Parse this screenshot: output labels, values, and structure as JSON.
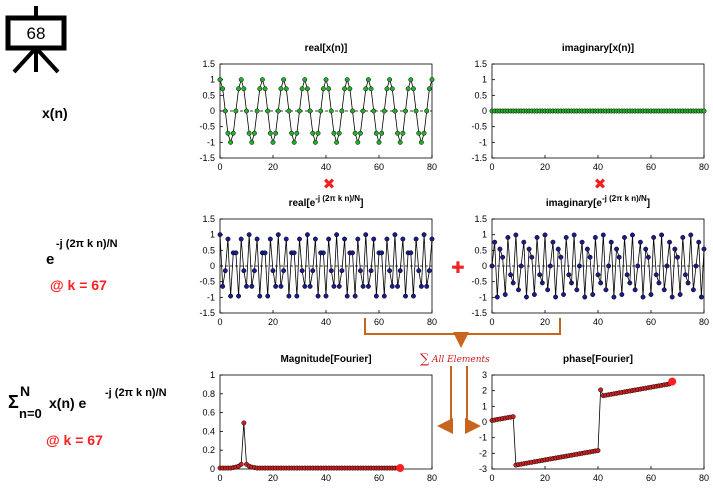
{
  "slide": {
    "number": "68"
  },
  "left_labels": {
    "signal": "x(n)",
    "kernel_base": "e",
    "kernel_exp": "-j (2π k n)/N",
    "k_value_1": "@ k = 67",
    "sum_sigma": "Σ",
    "sum_top": "N",
    "sum_bottom": "n=0",
    "sum_body": "x(n) e",
    "sum_exp": "-j (2π k n)/N",
    "k_value_2": "@ k = 67"
  },
  "operators": {
    "multiply": "✖",
    "plus": "✚",
    "sum_label": "All Elements",
    "sum_symbol": "∑"
  },
  "colors": {
    "signal_green": "#22b02a",
    "kernel_blue": "#1b1b8a",
    "result_red": "#cc2020",
    "result_end": "#ff2020",
    "arrow_orange": "#c8641e",
    "accent_red": "#ee2222"
  },
  "chart_data": [
    {
      "id": "real-x",
      "type": "line",
      "title": "real[x(n)]",
      "xlim": [
        0,
        80
      ],
      "ylim": [
        -1.5,
        1.5
      ],
      "xticks": [
        "0",
        "20",
        "40",
        "60",
        "80"
      ],
      "yticks": [
        "1.5",
        "1",
        "0.5",
        "0",
        "-0.5",
        "-1",
        "-1.5"
      ],
      "marker_color": "#22b02a",
      "x": [
        0,
        1,
        2,
        3,
        4,
        5,
        6,
        7,
        8,
        9,
        10,
        11,
        12,
        13,
        14,
        15,
        16,
        17,
        18,
        19,
        20,
        21,
        22,
        23,
        24,
        25,
        26,
        27,
        28,
        29,
        30,
        31,
        32,
        33,
        34,
        35,
        36,
        37,
        38,
        39,
        40,
        41,
        42,
        43,
        44,
        45,
        46,
        47,
        48,
        49,
        50,
        51,
        52,
        53,
        54,
        55,
        56,
        57,
        58,
        59,
        60,
        61,
        62,
        63,
        64,
        65,
        66,
        67,
        68,
        69,
        70,
        71,
        72,
        73,
        74,
        75,
        76,
        77,
        78,
        79,
        80
      ],
      "y": [
        1.0,
        0.71,
        0.0,
        -0.71,
        -1.0,
        -0.71,
        0.0,
        0.71,
        1.0,
        0.71,
        0.0,
        -0.71,
        -1.0,
        -0.71,
        0.0,
        0.71,
        1.0,
        0.71,
        0.0,
        -0.71,
        -1.0,
        -0.71,
        0.0,
        0.71,
        1.0,
        0.71,
        0.0,
        -0.71,
        -1.0,
        -0.71,
        0.0,
        0.71,
        1.0,
        0.71,
        0.0,
        -0.71,
        -1.0,
        -0.71,
        0.0,
        0.71,
        1.0,
        0.71,
        0.0,
        -0.71,
        -1.0,
        -0.71,
        0.0,
        0.71,
        1.0,
        0.71,
        0.0,
        -0.71,
        -1.0,
        -0.71,
        0.0,
        0.71,
        1.0,
        0.71,
        0.0,
        -0.71,
        -1.0,
        -0.71,
        0.0,
        0.71,
        1.0,
        0.71,
        0.0,
        -0.71,
        -1.0,
        -0.71,
        0.0,
        0.71,
        1.0,
        0.71,
        0.0,
        -0.71,
        -1.0,
        -0.71,
        0.0,
        0.71,
        1.0
      ],
      "zero_line": true
    },
    {
      "id": "imag-x",
      "type": "line",
      "title": "imaginary[x(n)]",
      "xlim": [
        0,
        80
      ],
      "ylim": [
        -1.5,
        1.5
      ],
      "xticks": [
        "0",
        "20",
        "40",
        "60",
        "80"
      ],
      "yticks": [
        "1.5",
        "1",
        "0.5",
        "0",
        "-0.5",
        "-1",
        "-1.5"
      ],
      "marker_color": "#22b02a",
      "x": [
        0,
        1,
        2,
        3,
        4,
        5,
        6,
        7,
        8,
        9,
        10,
        11,
        12,
        13,
        14,
        15,
        16,
        17,
        18,
        19,
        20,
        21,
        22,
        23,
        24,
        25,
        26,
        27,
        28,
        29,
        30,
        31,
        32,
        33,
        34,
        35,
        36,
        37,
        38,
        39,
        40,
        41,
        42,
        43,
        44,
        45,
        46,
        47,
        48,
        49,
        50,
        51,
        52,
        53,
        54,
        55,
        56,
        57,
        58,
        59,
        60,
        61,
        62,
        63,
        64,
        65,
        66,
        67,
        68,
        69,
        70,
        71,
        72,
        73,
        74,
        75,
        76,
        77,
        78,
        79,
        80
      ],
      "y": [
        0,
        0,
        0,
        0,
        0,
        0,
        0,
        0,
        0,
        0,
        0,
        0,
        0,
        0,
        0,
        0,
        0,
        0,
        0,
        0,
        0,
        0,
        0,
        0,
        0,
        0,
        0,
        0,
        0,
        0,
        0,
        0,
        0,
        0,
        0,
        0,
        0,
        0,
        0,
        0,
        0,
        0,
        0,
        0,
        0,
        0,
        0,
        0,
        0,
        0,
        0,
        0,
        0,
        0,
        0,
        0,
        0,
        0,
        0,
        0,
        0,
        0,
        0,
        0,
        0,
        0,
        0,
        0,
        0,
        0,
        0,
        0,
        0,
        0,
        0,
        0,
        0,
        0,
        0,
        0,
        0
      ],
      "zero_line": true
    },
    {
      "id": "real-kernel",
      "type": "line",
      "title_main": "real[e",
      "title_sup": "-j (2π k n)/N",
      "title_end": "]",
      "xlim": [
        0,
        80
      ],
      "ylim": [
        -1.5,
        1.5
      ],
      "xticks": [
        "0",
        "20",
        "40",
        "60",
        "80"
      ],
      "yticks": [
        "1.5",
        "1",
        "0.5",
        "0",
        "-0.5",
        "-1",
        "-1.5"
      ],
      "marker_color": "#1b1b8a",
      "x": [
        0,
        1,
        2,
        3,
        4,
        5,
        6,
        7,
        8,
        9,
        10,
        11,
        12,
        13,
        14,
        15,
        16,
        17,
        18,
        19,
        20,
        21,
        22,
        23,
        24,
        25,
        26,
        27,
        28,
        29,
        30,
        31,
        32,
        33,
        34,
        35,
        36,
        37,
        38,
        39,
        40,
        41,
        42,
        43,
        44,
        45,
        46,
        47,
        48,
        49,
        50,
        51,
        52,
        53,
        54,
        55,
        56,
        57,
        58,
        59,
        60,
        61,
        62,
        63,
        64,
        65,
        66,
        67,
        68,
        69,
        70,
        71,
        72,
        73,
        74,
        75,
        76,
        77,
        78,
        79,
        80
      ],
      "y": [
        1.0,
        -0.65,
        -0.15,
        0.86,
        -0.96,
        0.42,
        0.42,
        -0.96,
        0.86,
        -0.15,
        -0.65,
        1.0,
        -0.65,
        -0.15,
        0.86,
        -0.96,
        0.42,
        0.42,
        -0.96,
        0.86,
        -0.15,
        -0.65,
        1.0,
        -0.65,
        -0.15,
        0.86,
        -0.96,
        0.42,
        0.42,
        -0.96,
        0.86,
        -0.15,
        -0.65,
        1.0,
        -0.65,
        -0.15,
        0.86,
        -0.96,
        0.42,
        0.42,
        -0.96,
        0.86,
        -0.15,
        -0.65,
        1.0,
        -0.65,
        -0.15,
        0.86,
        -0.96,
        0.42,
        0.42,
        -0.96,
        0.86,
        -0.15,
        -0.65,
        1.0,
        -0.65,
        -0.15,
        0.86,
        -0.96,
        0.42,
        0.42,
        -0.96,
        0.86,
        -0.15,
        -0.65,
        1.0,
        -0.65,
        -0.15,
        0.86,
        -0.96,
        0.42,
        0.42,
        -0.96,
        0.86,
        -0.15,
        -0.65,
        1.0,
        -0.65,
        -0.15,
        0.86
      ],
      "zero_line": true
    },
    {
      "id": "imag-kernel",
      "type": "line",
      "title_main": "imaginary[e",
      "title_sup": "-j (2π k n)/N",
      "title_end": "]",
      "xlim": [
        0,
        80
      ],
      "ylim": [
        -1.5,
        1.5
      ],
      "xticks": [
        "0",
        "20",
        "40",
        "60",
        "80"
      ],
      "yticks": [
        "1.5",
        "1",
        "0.5",
        "0",
        "-0.5",
        "-1",
        "-1.5"
      ],
      "marker_color": "#1b1b8a",
      "x": [
        0,
        1,
        2,
        3,
        4,
        5,
        6,
        7,
        8,
        9,
        10,
        11,
        12,
        13,
        14,
        15,
        16,
        17,
        18,
        19,
        20,
        21,
        22,
        23,
        24,
        25,
        26,
        27,
        28,
        29,
        30,
        31,
        32,
        33,
        34,
        35,
        36,
        37,
        38,
        39,
        40,
        41,
        42,
        43,
        44,
        45,
        46,
        47,
        48,
        49,
        50,
        51,
        52,
        53,
        54,
        55,
        56,
        57,
        58,
        59,
        60,
        61,
        62,
        63,
        64,
        65,
        66,
        67,
        68,
        69,
        70,
        71,
        72,
        73,
        74,
        75,
        76,
        77,
        78,
        79,
        80
      ],
      "y": [
        0.0,
        0.76,
        -0.99,
        0.54,
        0.28,
        -0.91,
        0.91,
        -0.28,
        -0.54,
        0.99,
        -0.76,
        0.0,
        0.76,
        -0.99,
        0.54,
        0.28,
        -0.91,
        0.91,
        -0.28,
        -0.54,
        0.99,
        -0.76,
        0.0,
        0.76,
        -0.99,
        0.54,
        0.28,
        -0.91,
        0.91,
        -0.28,
        -0.54,
        0.99,
        -0.76,
        0.0,
        0.76,
        -0.99,
        0.54,
        0.28,
        -0.91,
        0.91,
        -0.28,
        -0.54,
        0.99,
        -0.76,
        0.0,
        0.76,
        -0.99,
        0.54,
        0.28,
        -0.91,
        0.91,
        -0.28,
        -0.54,
        0.99,
        -0.76,
        0.0,
        0.76,
        -0.99,
        0.54,
        0.28,
        -0.91,
        0.91,
        -0.28,
        -0.54,
        0.99,
        -0.76,
        0.0,
        0.76,
        -0.99,
        0.54,
        0.28,
        -0.91,
        0.91,
        -0.28,
        -0.54,
        0.99,
        -0.76,
        0.0,
        0.76,
        -0.99,
        0.54
      ],
      "zero_line": true
    },
    {
      "id": "magnitude",
      "type": "line",
      "title": "Magnitude[Fourier]",
      "xlim": [
        0,
        80
      ],
      "ylim": [
        0,
        1
      ],
      "xticks": [
        "0",
        "20",
        "40",
        "60",
        "80"
      ],
      "yticks": [
        "1",
        "0.8",
        "0.6",
        "0.4",
        "0.2",
        "0"
      ],
      "marker_color": "#cc2020",
      "x": [
        0,
        1,
        2,
        3,
        4,
        5,
        6,
        7,
        8,
        9,
        10,
        11,
        12,
        13,
        14,
        15,
        16,
        17,
        18,
        19,
        20,
        21,
        22,
        23,
        24,
        25,
        26,
        27,
        28,
        29,
        30,
        31,
        32,
        33,
        34,
        35,
        36,
        37,
        38,
        39,
        40,
        41,
        42,
        43,
        44,
        45,
        46,
        47,
        48,
        49,
        50,
        51,
        52,
        53,
        54,
        55,
        56,
        57,
        58,
        59,
        60,
        61,
        62,
        63,
        64,
        65,
        66,
        67,
        68
      ],
      "y": [
        0.01,
        0.01,
        0.01,
        0.01,
        0.01,
        0.015,
        0.02,
        0.03,
        0.05,
        0.49,
        0.05,
        0.03,
        0.02,
        0.015,
        0.01,
        0.01,
        0.01,
        0.01,
        0.01,
        0.01,
        0.01,
        0.01,
        0.01,
        0.01,
        0.01,
        0.01,
        0.01,
        0.01,
        0.01,
        0.01,
        0.01,
        0.01,
        0.01,
        0.01,
        0.01,
        0.01,
        0.01,
        0.01,
        0.01,
        0.01,
        0.01,
        0.01,
        0.01,
        0.01,
        0.01,
        0.01,
        0.01,
        0.01,
        0.01,
        0.01,
        0.01,
        0.01,
        0.01,
        0.01,
        0.01,
        0.01,
        0.01,
        0.01,
        0.01,
        0.01,
        0.01,
        0.01,
        0.01,
        0.01,
        0.01,
        0.01,
        0.01,
        0.01,
        0.01
      ],
      "highlight_last": true,
      "zero_line": false
    },
    {
      "id": "phase",
      "type": "line",
      "title": "phase[Fourier]",
      "xlim": [
        0,
        80
      ],
      "ylim": [
        -3,
        3
      ],
      "xticks": [
        "0",
        "20",
        "40",
        "60",
        "80"
      ],
      "yticks": [
        "3",
        "2",
        "1",
        "0",
        "-1",
        "-2",
        "-3"
      ],
      "marker_color": "#cc2020",
      "x": [
        0,
        1,
        2,
        3,
        4,
        5,
        6,
        7,
        8,
        9,
        10,
        11,
        12,
        13,
        14,
        15,
        16,
        17,
        18,
        19,
        20,
        21,
        22,
        23,
        24,
        25,
        26,
        27,
        28,
        29,
        30,
        31,
        32,
        33,
        34,
        35,
        36,
        37,
        38,
        39,
        40,
        41,
        42,
        43,
        44,
        45,
        46,
        47,
        48,
        49,
        50,
        51,
        52,
        53,
        54,
        55,
        56,
        57,
        58,
        59,
        60,
        61,
        62,
        63,
        64,
        65,
        66,
        67,
        68
      ],
      "y": [
        0.1,
        0.13,
        0.16,
        0.19,
        0.22,
        0.25,
        0.28,
        0.31,
        0.34,
        -2.75,
        -2.72,
        -2.69,
        -2.66,
        -2.63,
        -2.6,
        -2.57,
        -2.54,
        -2.51,
        -2.48,
        -2.45,
        -2.42,
        -2.39,
        -2.36,
        -2.33,
        -2.3,
        -2.27,
        -2.24,
        -2.21,
        -2.18,
        -2.15,
        -2.12,
        -2.09,
        -2.06,
        -2.03,
        -2.0,
        -1.97,
        -1.94,
        -1.91,
        -1.88,
        -1.85,
        -1.82,
        2.05,
        1.68,
        1.71,
        1.74,
        1.77,
        1.8,
        1.83,
        1.86,
        1.89,
        1.92,
        1.95,
        1.98,
        2.01,
        2.04,
        2.07,
        2.1,
        2.13,
        2.16,
        2.19,
        2.22,
        2.25,
        2.28,
        2.31,
        2.34,
        2.37,
        2.4,
        2.43,
        2.58
      ],
      "highlight_last": true,
      "zero_line": false
    }
  ]
}
